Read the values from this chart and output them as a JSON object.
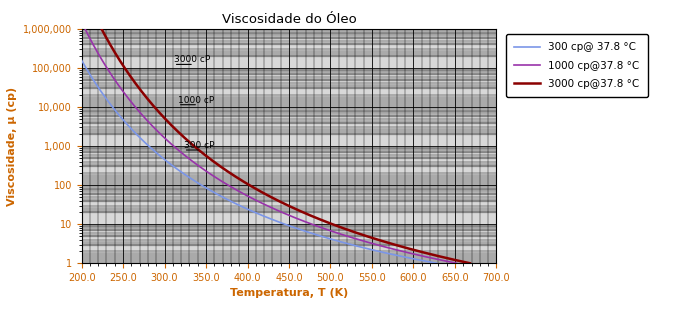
{
  "title": "Viscosidade do Óleo",
  "xlabel": "Temperatura, T (K)",
  "ylabel": "Viscosidade, μ (cp)",
  "xlim": [
    200.0,
    700.0
  ],
  "ylim": [
    1,
    1000000
  ],
  "xticks": [
    200.0,
    250.0,
    300.0,
    350.0,
    400.0,
    450.0,
    500.0,
    550.0,
    600.0,
    650.0,
    700.0
  ],
  "ytick_labels": [
    "1",
    "10",
    "100",
    "1,000",
    "10,000",
    "100,000",
    "1,000,000"
  ],
  "ytick_values": [
    1,
    10,
    100,
    1000,
    10000,
    100000,
    1000000
  ],
  "curves": [
    {
      "label": "300 cp@ 37.8 °C",
      "mu_ref": 300,
      "T_ref": 310.9,
      "T_end": 628,
      "color": "#7B96E8",
      "linewidth": 1.2,
      "annotation": "300 cP",
      "ann_x": 323,
      "ann_y": 900
    },
    {
      "label": "1000 cp@37.8 °C",
      "mu_ref": 1000,
      "T_ref": 310.9,
      "T_end": 652,
      "color": "#9933AA",
      "linewidth": 1.2,
      "annotation": "1000 cP",
      "ann_x": 316,
      "ann_y": 13000
    },
    {
      "label": "3000 cp@37.8 °C",
      "mu_ref": 3000,
      "T_ref": 310.9,
      "T_end": 668,
      "color": "#8B0000",
      "linewidth": 1.8,
      "annotation": "3000 cP",
      "ann_x": 311,
      "ann_y": 140000
    }
  ],
  "background_color": "#ffffff",
  "band_color_dark": "#888888",
  "band_color_mid": "#b8b8b8"
}
